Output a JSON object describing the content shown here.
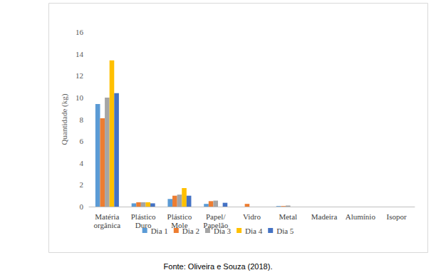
{
  "chart_data": {
    "type": "bar",
    "y_label": "Quantidade (kg)",
    "annotations": [
      "Fonte: Oliveira e Souza (2018)."
    ],
    "categories": [
      "Matéria\norgânica",
      "Plástico\nDuro",
      "Plástico\nMole",
      "Papel/\nPapelão",
      "Vidro",
      "Metal",
      "Madeira",
      "Alumínio",
      "Isopor"
    ],
    "series": [
      {
        "name": "Dia 1",
        "color": "#5b9bd5",
        "values": [
          9.4,
          0.3,
          0.7,
          0.25,
          0,
          0.05,
          0,
          0,
          0
        ]
      },
      {
        "name": "Dia 2",
        "color": "#ed7d31",
        "values": [
          8.1,
          0.4,
          1.0,
          0.5,
          0.25,
          0.05,
          0,
          0,
          0
        ]
      },
      {
        "name": "Dia 3",
        "color": "#a5a5a5",
        "values": [
          10.0,
          0.4,
          1.1,
          0.55,
          0,
          0.1,
          0,
          0,
          0
        ]
      },
      {
        "name": "Dia 4",
        "color": "#ffc000",
        "values": [
          13.4,
          0.4,
          1.7,
          0,
          0,
          0,
          0,
          0,
          0
        ]
      },
      {
        "name": "Dia 5",
        "color": "#4472c4",
        "values": [
          10.4,
          0.3,
          1.0,
          0.35,
          0,
          0,
          0,
          0,
          0
        ]
      }
    ],
    "ylim": [
      0,
      16
    ],
    "yticks": [
      0,
      2,
      4,
      6,
      8,
      10,
      12,
      14,
      16
    ],
    "grid": false,
    "legend": "bottom"
  }
}
